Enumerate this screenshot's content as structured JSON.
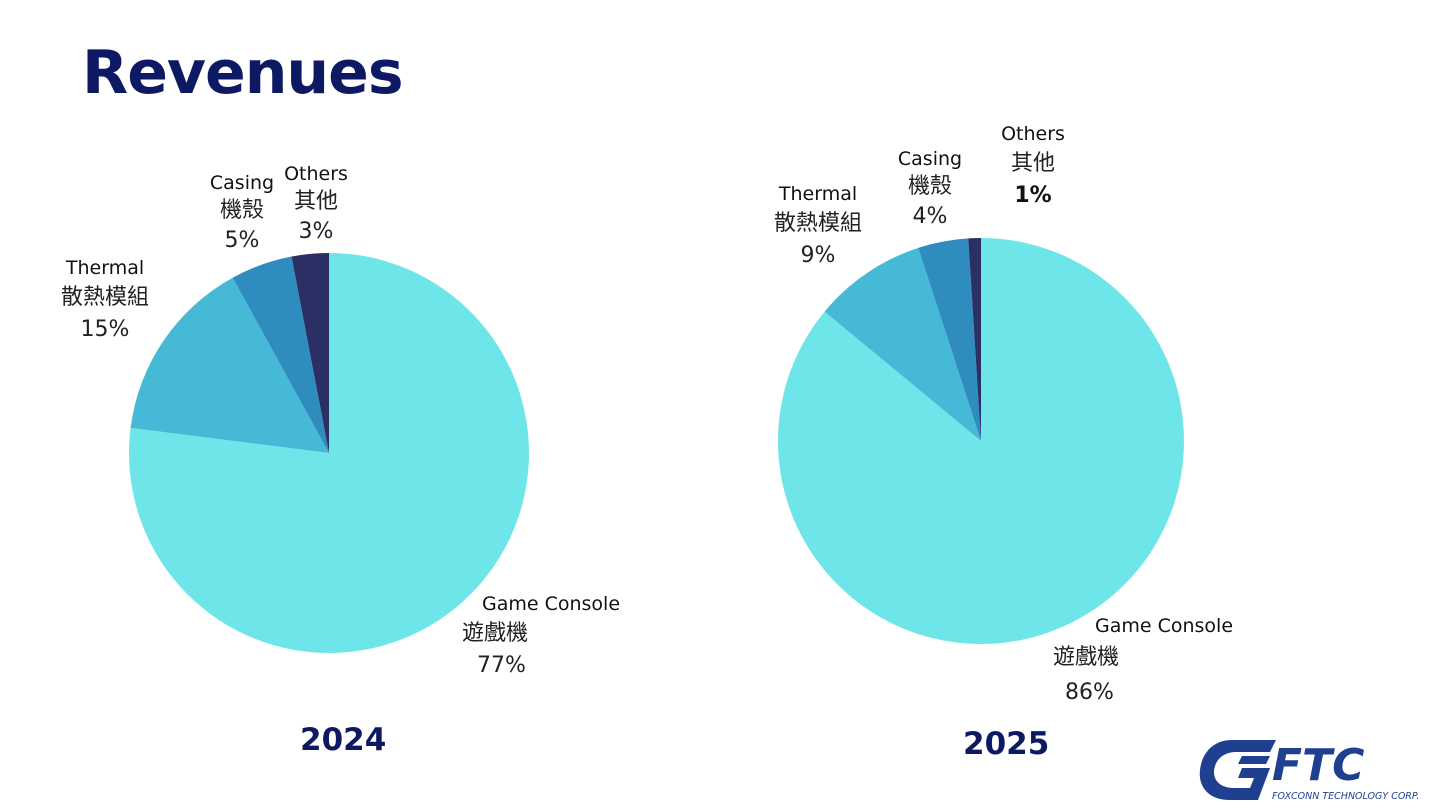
{
  "page": {
    "title": "Revenues"
  },
  "logo": {
    "mark": "FTC",
    "subtitle": "FOXCONN TECHNOLOGY CORP."
  },
  "colors": {
    "game_console": "#6ee5e9",
    "thermal": "#45b9d6",
    "casing": "#2f8cbf",
    "others": "#2a3064",
    "title": "#0d1a63"
  },
  "chart_data": [
    {
      "type": "pie",
      "year": "2024",
      "slices": [
        {
          "en": "Others",
          "zh": "其他",
          "pct_label": "3%",
          "value": 3,
          "color": "#2a3064"
        },
        {
          "en": "Casing",
          "zh": "機殼",
          "pct_label": "5%",
          "value": 5,
          "color": "#2f8cbf"
        },
        {
          "en": "Thermal",
          "zh": "散熱模組",
          "pct_label": "15%",
          "value": 15,
          "color": "#45b9d6"
        },
        {
          "en": "Game Console",
          "zh": "遊戲機",
          "pct_label": "77%",
          "value": 77,
          "color": "#6ee5e9"
        }
      ]
    },
    {
      "type": "pie",
      "year": "2025",
      "slices": [
        {
          "en": "Others",
          "zh": "其他",
          "pct_label": "1%",
          "value": 1,
          "color": "#2a3064"
        },
        {
          "en": "Casing",
          "zh": "機殼",
          "pct_label": "4%",
          "value": 4,
          "color": "#2f8cbf"
        },
        {
          "en": "Thermal",
          "zh": "散熱模組",
          "pct_label": "9%",
          "value": 9,
          "color": "#45b9d6"
        },
        {
          "en": "Game Console",
          "zh": "遊戲機",
          "pct_label": "86%",
          "value": 86,
          "color": "#6ee5e9"
        }
      ]
    }
  ]
}
